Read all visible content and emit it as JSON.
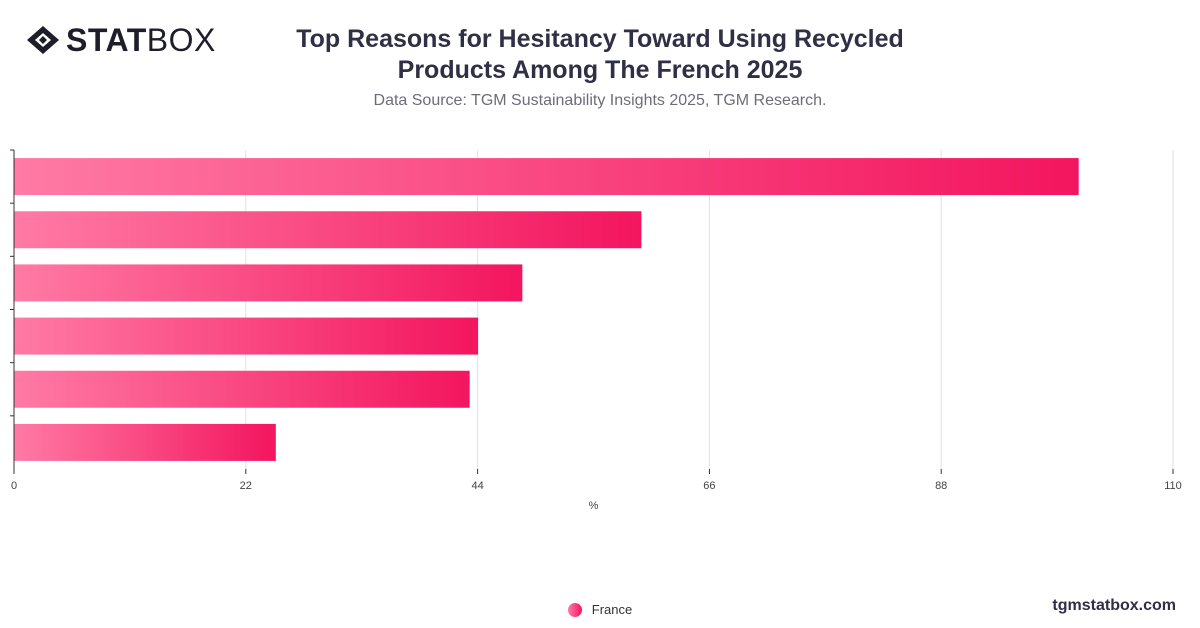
{
  "header": {
    "logo_text_bold": "STAT",
    "logo_text_light": "BOX",
    "title_line1": "Top Reasons for Hesitancy Toward Using Recycled",
    "title_line2": "Products Among The French 2025",
    "subtitle": "Data Source: TGM Sustainability Insights 2025, TGM Research."
  },
  "legend": {
    "label": "France"
  },
  "footer": {
    "site": "tgmstatbox.com"
  },
  "colors": {
    "bar_start": "#ff7aa5",
    "bar_end": "#f3155f",
    "grid": "#e2e2e2",
    "axis": "#333333"
  },
  "chart_data": {
    "type": "bar",
    "orientation": "horizontal",
    "categories": [
      "",
      "",
      "",
      "",
      "",
      ""
    ],
    "series": [
      {
        "name": "France",
        "values": [
          101,
          59.5,
          48.2,
          44,
          43.2,
          24.8
        ]
      }
    ],
    "xlabel": "%",
    "ylabel": "",
    "xlim": [
      0,
      110
    ],
    "xticks": [
      "0",
      "22",
      "44",
      "66",
      "88",
      "110"
    ],
    "grid": true,
    "legend_position": "bottom-center"
  }
}
